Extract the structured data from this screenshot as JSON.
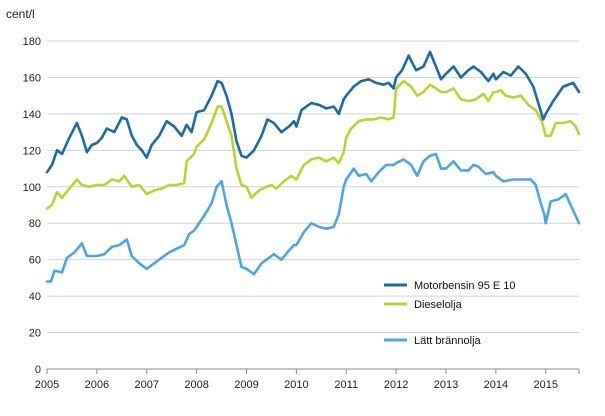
{
  "chart_data": {
    "type": "line",
    "ylabel": "cent/l",
    "ylim": [
      0,
      180
    ],
    "yticks": [
      0,
      20,
      40,
      60,
      80,
      100,
      120,
      140,
      160,
      180
    ],
    "xlim": [
      2005,
      2015.667
    ],
    "xticks": [
      "2005",
      "2006",
      "2007",
      "2008",
      "2009",
      "2010",
      "2011",
      "2012",
      "2013",
      "2014",
      "2015"
    ],
    "grid": "horizontal",
    "legend_position": "bottom-right",
    "series": [
      {
        "name": "Motorbensin 95 E 10",
        "color": "#1b6aa5",
        "points": [
          [
            2005.0,
            108
          ],
          [
            2005.1,
            112
          ],
          [
            2005.2,
            120
          ],
          [
            2005.3,
            118
          ],
          [
            2005.45,
            127
          ],
          [
            2005.6,
            135
          ],
          [
            2005.7,
            128
          ],
          [
            2005.8,
            119
          ],
          [
            2005.9,
            123
          ],
          [
            2006.0,
            124
          ],
          [
            2006.1,
            127
          ],
          [
            2006.2,
            132
          ],
          [
            2006.35,
            130
          ],
          [
            2006.5,
            138
          ],
          [
            2006.6,
            137
          ],
          [
            2006.7,
            128
          ],
          [
            2006.8,
            123
          ],
          [
            2006.9,
            120
          ],
          [
            2007.0,
            116
          ],
          [
            2007.1,
            123
          ],
          [
            2007.25,
            128
          ],
          [
            2007.4,
            136
          ],
          [
            2007.55,
            133
          ],
          [
            2007.7,
            128
          ],
          [
            2007.8,
            134
          ],
          [
            2007.9,
            130
          ],
          [
            2008.0,
            141
          ],
          [
            2008.15,
            142
          ],
          [
            2008.3,
            150
          ],
          [
            2008.42,
            158
          ],
          [
            2008.5,
            157
          ],
          [
            2008.6,
            150
          ],
          [
            2008.7,
            140
          ],
          [
            2008.8,
            125
          ],
          [
            2008.9,
            117
          ],
          [
            2009.0,
            116
          ],
          [
            2009.15,
            120
          ],
          [
            2009.3,
            128
          ],
          [
            2009.42,
            137
          ],
          [
            2009.55,
            135
          ],
          [
            2009.7,
            130
          ],
          [
            2009.85,
            133
          ],
          [
            2009.95,
            136
          ],
          [
            2010.0,
            133
          ],
          [
            2010.1,
            142
          ],
          [
            2010.3,
            146
          ],
          [
            2010.45,
            145
          ],
          [
            2010.6,
            143
          ],
          [
            2010.75,
            144
          ],
          [
            2010.85,
            140
          ],
          [
            2010.95,
            148
          ],
          [
            2011.0,
            150
          ],
          [
            2011.15,
            155
          ],
          [
            2011.3,
            158
          ],
          [
            2011.45,
            159
          ],
          [
            2011.6,
            157
          ],
          [
            2011.75,
            156
          ],
          [
            2011.85,
            157
          ],
          [
            2011.95,
            154
          ],
          [
            2012.0,
            160
          ],
          [
            2012.12,
            164
          ],
          [
            2012.25,
            172
          ],
          [
            2012.4,
            164
          ],
          [
            2012.55,
            166
          ],
          [
            2012.68,
            174
          ],
          [
            2012.8,
            166
          ],
          [
            2012.9,
            159
          ],
          [
            2013.0,
            162
          ],
          [
            2013.15,
            166
          ],
          [
            2013.3,
            160
          ],
          [
            2013.45,
            164
          ],
          [
            2013.55,
            166
          ],
          [
            2013.7,
            163
          ],
          [
            2013.85,
            158
          ],
          [
            2013.95,
            162
          ],
          [
            2014.0,
            159
          ],
          [
            2014.15,
            163
          ],
          [
            2014.3,
            161
          ],
          [
            2014.45,
            166
          ],
          [
            2014.6,
            162
          ],
          [
            2014.75,
            155
          ],
          [
            2014.85,
            146
          ],
          [
            2014.95,
            137
          ],
          [
            2015.0,
            140
          ],
          [
            2015.15,
            147
          ],
          [
            2015.35,
            155
          ],
          [
            2015.55,
            157
          ],
          [
            2015.667,
            152
          ]
        ]
      },
      {
        "name": "Dieselolja",
        "color": "#b8d433",
        "points": [
          [
            2005.0,
            88
          ],
          [
            2005.1,
            90
          ],
          [
            2005.2,
            97
          ],
          [
            2005.3,
            94
          ],
          [
            2005.45,
            99
          ],
          [
            2005.6,
            104
          ],
          [
            2005.7,
            101
          ],
          [
            2005.85,
            100
          ],
          [
            2006.0,
            101
          ],
          [
            2006.15,
            101
          ],
          [
            2006.3,
            104
          ],
          [
            2006.45,
            103
          ],
          [
            2006.55,
            106
          ],
          [
            2006.7,
            100
          ],
          [
            2006.85,
            101
          ],
          [
            2007.0,
            96
          ],
          [
            2007.15,
            98
          ],
          [
            2007.3,
            99
          ],
          [
            2007.45,
            101
          ],
          [
            2007.6,
            101
          ],
          [
            2007.75,
            102
          ],
          [
            2007.8,
            114
          ],
          [
            2007.95,
            118
          ],
          [
            2008.0,
            122
          ],
          [
            2008.15,
            126
          ],
          [
            2008.3,
            135
          ],
          [
            2008.42,
            144
          ],
          [
            2008.5,
            144
          ],
          [
            2008.6,
            136
          ],
          [
            2008.7,
            128
          ],
          [
            2008.8,
            110
          ],
          [
            2008.9,
            101
          ],
          [
            2009.0,
            100
          ],
          [
            2009.1,
            94
          ],
          [
            2009.25,
            98
          ],
          [
            2009.4,
            100
          ],
          [
            2009.5,
            101
          ],
          [
            2009.6,
            99
          ],
          [
            2009.75,
            103
          ],
          [
            2009.9,
            106
          ],
          [
            2010.0,
            104
          ],
          [
            2010.15,
            112
          ],
          [
            2010.3,
            115
          ],
          [
            2010.45,
            116
          ],
          [
            2010.6,
            114
          ],
          [
            2010.75,
            116
          ],
          [
            2010.85,
            113
          ],
          [
            2010.95,
            119
          ],
          [
            2011.0,
            127
          ],
          [
            2011.1,
            132
          ],
          [
            2011.25,
            136
          ],
          [
            2011.4,
            137
          ],
          [
            2011.55,
            137
          ],
          [
            2011.7,
            138
          ],
          [
            2011.85,
            137
          ],
          [
            2011.95,
            138
          ],
          [
            2012.0,
            154
          ],
          [
            2012.15,
            158
          ],
          [
            2012.3,
            155
          ],
          [
            2012.42,
            150
          ],
          [
            2012.55,
            152
          ],
          [
            2012.68,
            156
          ],
          [
            2012.8,
            154
          ],
          [
            2012.9,
            152
          ],
          [
            2013.0,
            152
          ],
          [
            2013.15,
            154
          ],
          [
            2013.3,
            148
          ],
          [
            2013.45,
            147
          ],
          [
            2013.6,
            148
          ],
          [
            2013.75,
            151
          ],
          [
            2013.85,
            147
          ],
          [
            2013.95,
            152
          ],
          [
            2014.0,
            152
          ],
          [
            2014.1,
            153
          ],
          [
            2014.2,
            150
          ],
          [
            2014.35,
            149
          ],
          [
            2014.5,
            150
          ],
          [
            2014.65,
            145
          ],
          [
            2014.8,
            142
          ],
          [
            2014.92,
            136
          ],
          [
            2015.0,
            128
          ],
          [
            2015.1,
            128
          ],
          [
            2015.2,
            135
          ],
          [
            2015.35,
            135
          ],
          [
            2015.5,
            136
          ],
          [
            2015.6,
            133
          ],
          [
            2015.667,
            129
          ]
        ]
      },
      {
        "name": "Lätt brännolja",
        "color": "#4fa6dc",
        "points": [
          [
            2005.0,
            48
          ],
          [
            2005.08,
            48
          ],
          [
            2005.15,
            54
          ],
          [
            2005.3,
            53
          ],
          [
            2005.4,
            61
          ],
          [
            2005.55,
            64
          ],
          [
            2005.7,
            69
          ],
          [
            2005.8,
            62
          ],
          [
            2006.0,
            62
          ],
          [
            2006.15,
            63
          ],
          [
            2006.3,
            67
          ],
          [
            2006.45,
            68
          ],
          [
            2006.6,
            71
          ],
          [
            2006.7,
            62
          ],
          [
            2006.85,
            58
          ],
          [
            2007.0,
            55
          ],
          [
            2007.15,
            58
          ],
          [
            2007.3,
            61
          ],
          [
            2007.45,
            64
          ],
          [
            2007.6,
            66
          ],
          [
            2007.75,
            68
          ],
          [
            2007.85,
            74
          ],
          [
            2007.95,
            76
          ],
          [
            2008.0,
            78
          ],
          [
            2008.15,
            84
          ],
          [
            2008.3,
            91
          ],
          [
            2008.4,
            100
          ],
          [
            2008.5,
            103
          ],
          [
            2008.6,
            90
          ],
          [
            2008.7,
            80
          ],
          [
            2008.8,
            68
          ],
          [
            2008.9,
            56
          ],
          [
            2009.0,
            55
          ],
          [
            2009.15,
            52
          ],
          [
            2009.3,
            58
          ],
          [
            2009.4,
            60
          ],
          [
            2009.55,
            63
          ],
          [
            2009.7,
            60
          ],
          [
            2009.85,
            65
          ],
          [
            2009.95,
            68
          ],
          [
            2010.0,
            68
          ],
          [
            2010.15,
            75
          ],
          [
            2010.3,
            80
          ],
          [
            2010.45,
            78
          ],
          [
            2010.6,
            77
          ],
          [
            2010.75,
            78
          ],
          [
            2010.85,
            85
          ],
          [
            2010.95,
            100
          ],
          [
            2011.0,
            104
          ],
          [
            2011.15,
            110
          ],
          [
            2011.25,
            106
          ],
          [
            2011.4,
            107
          ],
          [
            2011.5,
            103
          ],
          [
            2011.65,
            108
          ],
          [
            2011.8,
            112
          ],
          [
            2011.95,
            112
          ],
          [
            2012.0,
            113
          ],
          [
            2012.15,
            115
          ],
          [
            2012.3,
            112
          ],
          [
            2012.42,
            106
          ],
          [
            2012.55,
            114
          ],
          [
            2012.68,
            117
          ],
          [
            2012.8,
            118
          ],
          [
            2012.9,
            110
          ],
          [
            2013.0,
            110
          ],
          [
            2013.15,
            114
          ],
          [
            2013.3,
            109
          ],
          [
            2013.45,
            109
          ],
          [
            2013.55,
            112
          ],
          [
            2013.65,
            111
          ],
          [
            2013.8,
            107
          ],
          [
            2013.95,
            108
          ],
          [
            2014.0,
            106
          ],
          [
            2014.15,
            103
          ],
          [
            2014.35,
            104
          ],
          [
            2014.55,
            104
          ],
          [
            2014.7,
            104
          ],
          [
            2014.8,
            101
          ],
          [
            2014.9,
            91
          ],
          [
            2014.97,
            85
          ],
          [
            2015.0,
            80
          ],
          [
            2015.1,
            92
          ],
          [
            2015.25,
            93
          ],
          [
            2015.4,
            96
          ],
          [
            2015.55,
            87
          ],
          [
            2015.667,
            80
          ]
        ]
      }
    ]
  }
}
